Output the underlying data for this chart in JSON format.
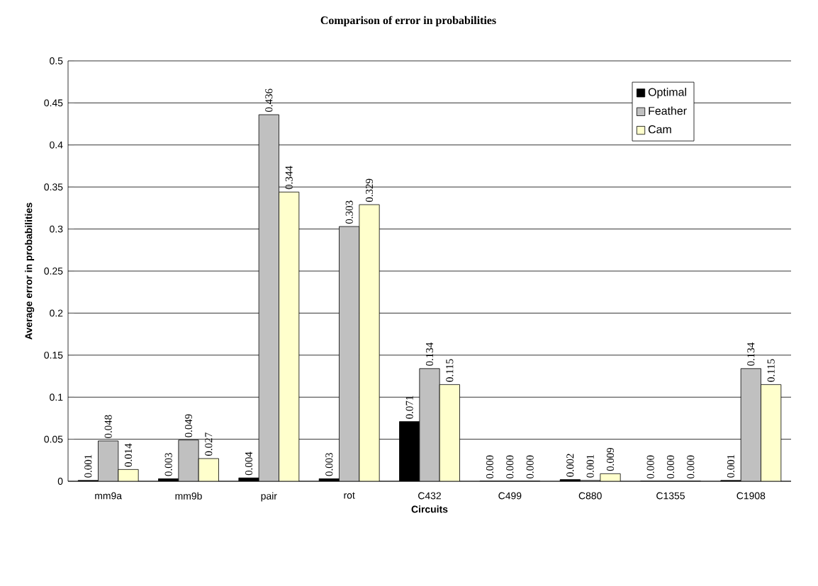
{
  "chart_data": {
    "type": "bar",
    "title": "Comparison of error in probabilities",
    "xlabel": "Circuits",
    "ylabel": "Average error in probabilities",
    "categories": [
      "mm9a",
      "mm9b",
      "pair",
      "rot",
      "C432",
      "C499",
      "C880",
      "C1355",
      "C1908"
    ],
    "series": [
      {
        "name": "Optimal",
        "color": "#000000",
        "values": [
          0.001,
          0.003,
          0.004,
          0.003,
          0.071,
          0,
          0.002,
          0,
          0.001
        ],
        "value_labels": [
          "0.001",
          "0.003",
          "0.004",
          "0.003",
          "0.071",
          "0.000",
          "0.002",
          "0.000",
          "0.001"
        ]
      },
      {
        "name": "Feather",
        "color": "#c0c0c0",
        "values": [
          0.048,
          0.049,
          0.436,
          0.303,
          0.134,
          0,
          0.001,
          0,
          0.134
        ],
        "value_labels": [
          "0.048",
          "0.049",
          "0.436",
          "0.303",
          "0.134",
          "0.000",
          "0.001",
          "0.000",
          "0.134"
        ]
      },
      {
        "name": "Cam",
        "color": "#ffffcc",
        "values": [
          0.014,
          0.027,
          0.344,
          0.329,
          0.115,
          0,
          0.009,
          0,
          0.115
        ],
        "value_labels": [
          "0.014",
          "0.027",
          "0.344",
          "0.329",
          "0.115",
          "0.000",
          "0.009",
          "0.000",
          "0.115"
        ]
      }
    ],
    "ylim": [
      0,
      0.5
    ],
    "yticks": [
      0,
      0.05,
      0.1,
      0.15,
      0.2,
      0.25,
      0.3,
      0.35,
      0.4,
      0.45,
      0.5
    ],
    "grid": "y",
    "legend": "top right"
  }
}
